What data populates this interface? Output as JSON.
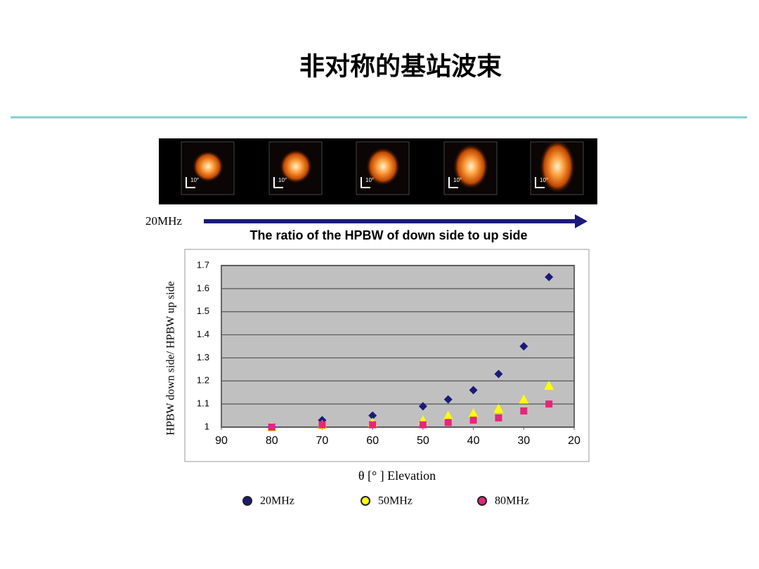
{
  "title": "非对称的基站波束",
  "beam_scale_labels": [
    "10°",
    "10°",
    "10°",
    "10°",
    "10°"
  ],
  "arrow_label": "20MHz",
  "chart_data": {
    "type": "scatter",
    "title": "The ratio of the HPBW of down side to up side",
    "x_label": "θ [° ] Elevation",
    "y_label": "HPBW down side/ HPBW up side",
    "x": [
      80,
      70,
      60,
      50,
      45,
      40,
      35,
      30,
      25
    ],
    "series": [
      {
        "name": "20MHz",
        "color": "#1a1a7a",
        "marker": "diamond",
        "values": [
          1.0,
          1.03,
          1.05,
          1.09,
          1.12,
          1.16,
          1.23,
          1.35,
          1.65
        ]
      },
      {
        "name": "50MHz",
        "color": "#ffff00",
        "marker": "triangle",
        "values": [
          1.0,
          1.01,
          1.02,
          1.03,
          1.05,
          1.06,
          1.08,
          1.12,
          1.18
        ]
      },
      {
        "name": "80MHz",
        "color": "#e6267a",
        "marker": "square",
        "values": [
          1.0,
          1.01,
          1.01,
          1.01,
          1.02,
          1.03,
          1.04,
          1.07,
          1.1
        ]
      }
    ],
    "xlim": [
      90,
      20
    ],
    "xticks": [
      90,
      80,
      70,
      60,
      50,
      40,
      30,
      20
    ],
    "ylim": [
      1,
      1.7
    ],
    "yticks": [
      1,
      1.1,
      1.2,
      1.3,
      1.4,
      1.5,
      1.6,
      1.7
    ],
    "grid": true
  }
}
